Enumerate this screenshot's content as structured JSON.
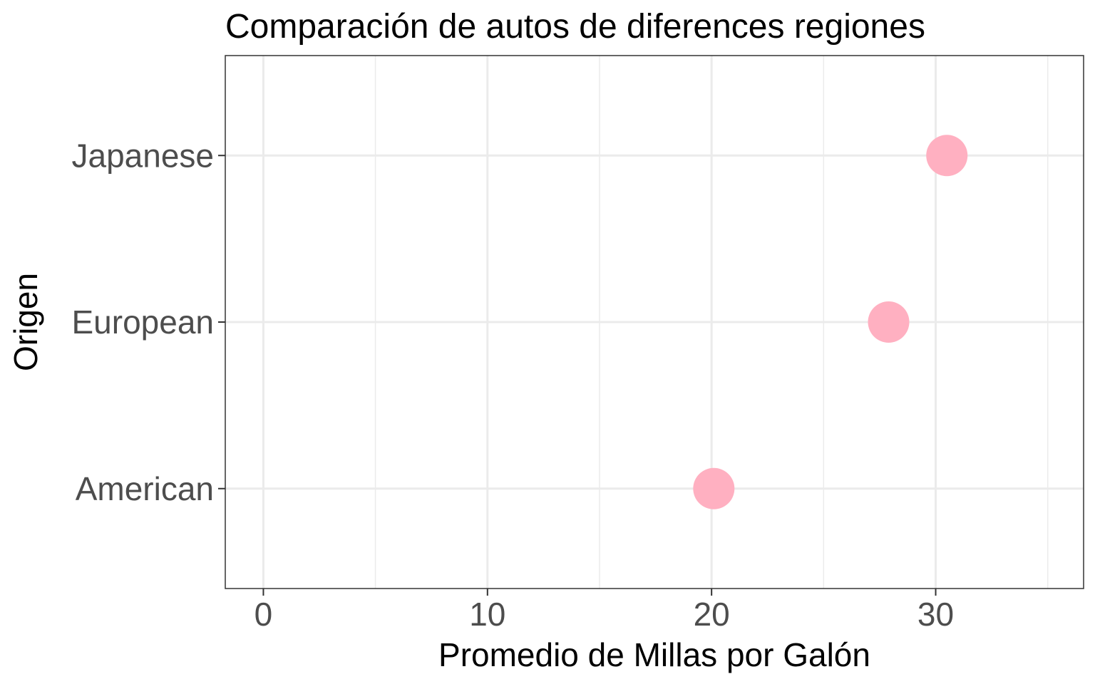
{
  "chart_data": {
    "type": "scatter",
    "title": "Comparación de autos de diferences regiones",
    "xlabel": "Promedio de Millas por Galón",
    "ylabel": "Origen",
    "categories": [
      "American",
      "European",
      "Japanese"
    ],
    "values": [
      20.1,
      27.9,
      30.5
    ],
    "xlim": [
      -1.7,
      36.6
    ],
    "x_ticks": [
      0,
      10,
      20,
      30
    ],
    "x_tick_labels": [
      "0",
      "10",
      "20",
      "30"
    ],
    "grid": true,
    "legend": "none",
    "colors": {
      "point": "#ffb0c1",
      "grid": "#ebebeb",
      "border": "#333333",
      "tick_text": "#4d4d4d"
    }
  }
}
